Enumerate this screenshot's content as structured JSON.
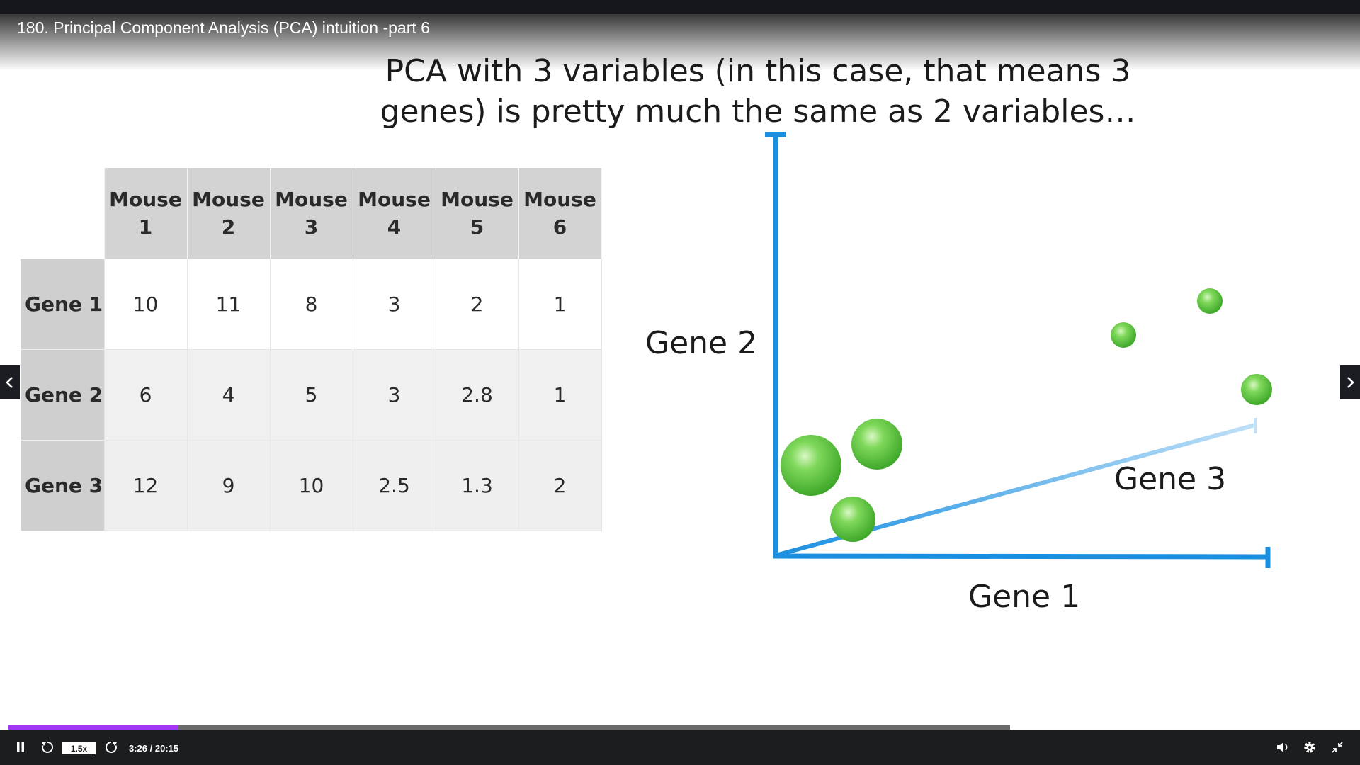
{
  "player": {
    "title": "180. Principal Component Analysis (PCA) intuition -part 6",
    "speed": "1.5x",
    "time": "3:26 / 20:15",
    "progress_fraction": 0.17,
    "buffered_fraction": 0.6,
    "accent": "#a435f0"
  },
  "slide": {
    "heading_line1": "PCA with 3 variables (in this case, that means 3",
    "heading_line2": "genes) is pretty much the same as 2 variables…",
    "table": {
      "columns": [
        "Mouse\n1",
        "Mouse\n2",
        "Mouse\n3",
        "Mouse\n4",
        "Mouse\n5",
        "Mouse\n6"
      ],
      "column_lines": [
        [
          "Mouse",
          "1"
        ],
        [
          "Mouse",
          "2"
        ],
        [
          "Mouse",
          "3"
        ],
        [
          "Mouse",
          "4"
        ],
        [
          "Mouse",
          "5"
        ],
        [
          "Mouse",
          "6"
        ]
      ],
      "rows": [
        {
          "label": "Gene 1",
          "values": [
            "10",
            "11",
            "8",
            "3",
            "2",
            "1"
          ]
        },
        {
          "label": "Gene 2",
          "values": [
            "6",
            "4",
            "5",
            "3",
            "2.8",
            "1"
          ]
        },
        {
          "label": "Gene 3",
          "values": [
            "12",
            "9",
            "10",
            "2.5",
            "1.3",
            "2"
          ]
        }
      ]
    },
    "plot": {
      "gene1_label": "Gene 1",
      "gene2_label": "Gene 2",
      "gene3_label": "Gene 3",
      "axis_color": "#1a8fe0",
      "point_color": "#5cc93a"
    }
  },
  "icons": {
    "pause": "pause-icon",
    "rewind": "rewind-icon",
    "forward": "forward-icon",
    "volume": "volume-icon",
    "settings": "gear-icon",
    "exit_fullscreen": "exit-fullscreen-icon",
    "prev": "chevron-left-icon",
    "next": "chevron-right-icon"
  }
}
